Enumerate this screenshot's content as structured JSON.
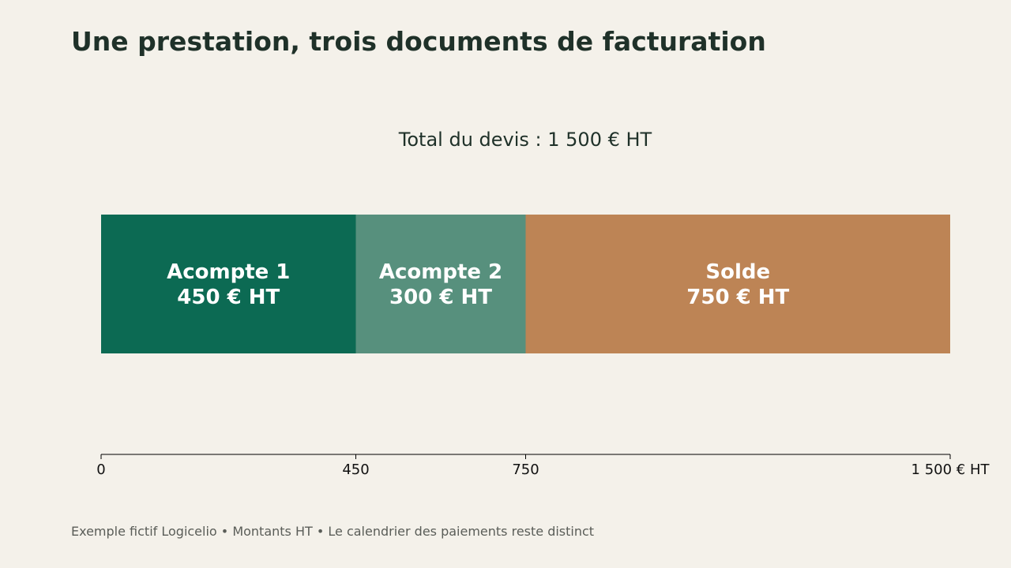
{
  "title": "Une prestation, trois documents de facturation",
  "chart_data": {
    "type": "bar",
    "orientation": "horizontal-stacked",
    "title": "Total du devis : 1 500 € HT",
    "total": 1500,
    "xlim": [
      0,
      1500
    ],
    "segments": [
      {
        "line1": "Acompte 1",
        "line2": "450 € HT",
        "value": 450,
        "color": "#0c6a53"
      },
      {
        "line1": "Acompte 2",
        "line2": "300 € HT",
        "value": 300,
        "color": "#57907d"
      },
      {
        "line1": "Solde",
        "line2": "750 € HT",
        "value": 750,
        "color": "#bd8455"
      }
    ],
    "ticks": [
      {
        "value": 0,
        "label": "0"
      },
      {
        "value": 450,
        "label": "450"
      },
      {
        "value": 750,
        "label": "750"
      },
      {
        "value": 1500,
        "label": "1 500 € HT"
      }
    ],
    "grid": false,
    "legend": "none"
  },
  "footer": "Exemple fictif Logicelio • Montants HT • Le calendrier des paiements reste distinct"
}
